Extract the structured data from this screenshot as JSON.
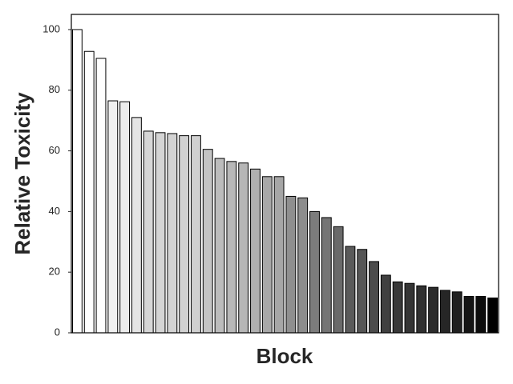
{
  "chart_data": {
    "type": "bar",
    "x_label": "Block",
    "y_label": "Relative Toxicity",
    "values": [
      100,
      92.8,
      90.5,
      76.5,
      76.2,
      71,
      66.5,
      66,
      65.7,
      65,
      65,
      60.5,
      57.5,
      56.5,
      56,
      54,
      51.5,
      51.5,
      45,
      44.5,
      40,
      38,
      35,
      28.5,
      27.5,
      23.5,
      19,
      16.8,
      16.3,
      15.5,
      15,
      14,
      13.5,
      12,
      12,
      11.5
    ],
    "colors": [
      "#ffffff",
      "#ffffff",
      "#ffffff",
      "#f0f0f0",
      "#ececec",
      "#e4e4e4",
      "#d6d6d6",
      "#d4d4d4",
      "#d3d3d3",
      "#d1d1d1",
      "#d0d0d0",
      "#c4c4c4",
      "#bcbcbc",
      "#b8b8b8",
      "#b6b6b6",
      "#b0b0b0",
      "#a8a8a8",
      "#a6a6a6",
      "#8f8f8f",
      "#8d8d8d",
      "#7c7c7c",
      "#747474",
      "#6a6a6a",
      "#5a5a5a",
      "#565656",
      "#4c4c4c",
      "#404040",
      "#383838",
      "#343434",
      "#303030",
      "#2c2c2c",
      "#262626",
      "#202020",
      "#141414",
      "#0c0c0c",
      "#000000"
    ],
    "edgecolor": "#000000",
    "ylim": [
      0,
      105
    ],
    "yticks": [
      0,
      20,
      40,
      60,
      80,
      100
    ]
  }
}
